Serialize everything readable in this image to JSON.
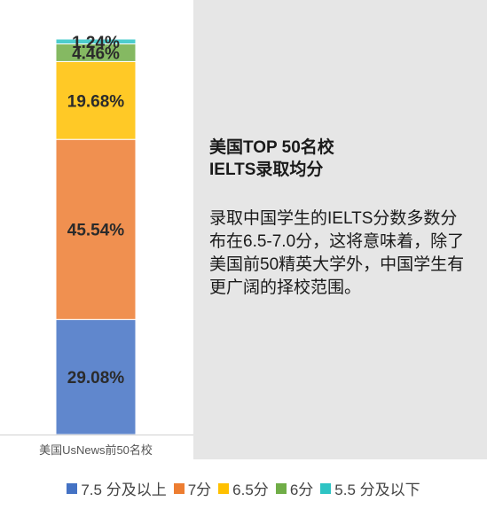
{
  "chart_data": {
    "type": "bar",
    "stacked": true,
    "categories": [
      "美国UsNews前50名校"
    ],
    "series": [
      {
        "name": "7.5 分及以上",
        "values": [
          29.08
        ],
        "label": "29.08%",
        "color": "#4472c4"
      },
      {
        "name": "7分",
        "values": [
          45.54
        ],
        "label": "45.54%",
        "color": "#ed7d31"
      },
      {
        "name": "6.5分",
        "values": [
          19.68
        ],
        "label": "19.68%",
        "color": "#ffc000"
      },
      {
        "name": "6分",
        "values": [
          4.46
        ],
        "label": "4.46%",
        "color": "#70ad47"
      },
      {
        "name": "5.5 分及以下",
        "values": [
          1.24
        ],
        "label": "1.24%",
        "color": "#2ec4c4"
      }
    ],
    "ylim": [
      0,
      100
    ],
    "legend": "bottom"
  },
  "info": {
    "title": "美国TOP 50名校\nIELTS录取均分",
    "body": "录取中国学生的IELTS分数多数分布在6.5-7.0分，这将意味着，除了美国前50精英大学外，中国学生有更广阔的择校范围。"
  }
}
